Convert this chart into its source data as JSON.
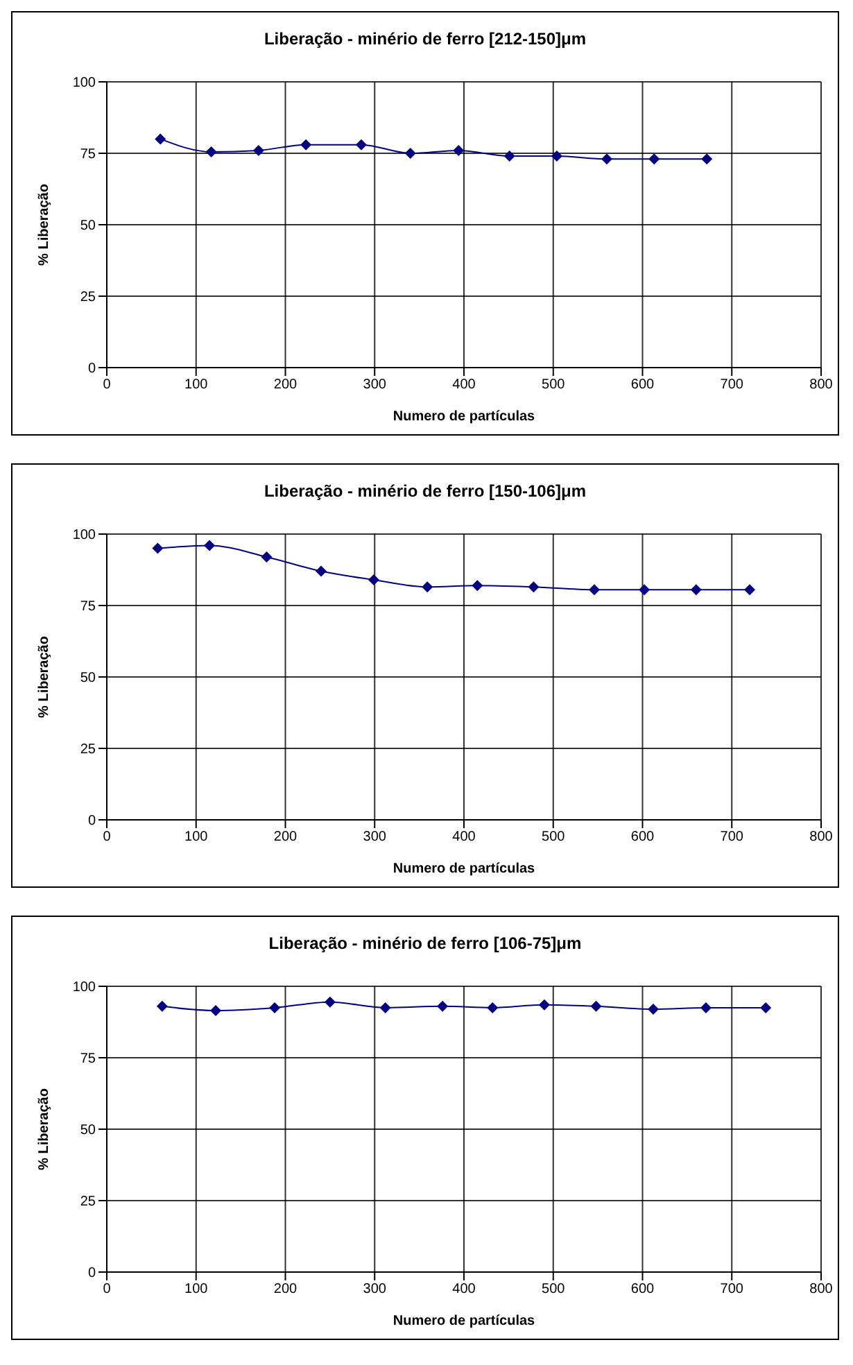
{
  "chart_data": [
    {
      "type": "line",
      "title": "Liberação - minério de ferro [212-150]μm",
      "xlabel": "Numero de partículas",
      "ylabel": "% Liberação",
      "x": [
        60,
        117,
        170,
        223,
        285,
        340,
        394,
        451,
        504,
        560,
        613,
        672
      ],
      "series": [
        {
          "color": "#000080",
          "values": [
            80,
            75.5,
            76,
            78,
            78,
            75,
            76,
            74,
            74,
            73,
            73,
            73
          ]
        }
      ],
      "xlim": [
        0,
        800
      ],
      "xticks": [
        0,
        100,
        200,
        300,
        400,
        500,
        600,
        700,
        800
      ],
      "ylim": [
        0,
        100
      ],
      "yticks": [
        0,
        25,
        50,
        75,
        100
      ],
      "grid": true,
      "marker": "diamond",
      "line_style": "solid"
    },
    {
      "type": "line",
      "title": "Liberação - minério de ferro [150-106]μm",
      "xlabel": "Numero de partículas",
      "ylabel": "% Liberação",
      "x": [
        57,
        115,
        179,
        240,
        299,
        359,
        415,
        478,
        546,
        602,
        660,
        720
      ],
      "series": [
        {
          "color": "#000080",
          "values": [
            95,
            96,
            92,
            87,
            84,
            81.5,
            82,
            81.5,
            80.5,
            80.5,
            80.5,
            80.5
          ]
        }
      ],
      "xlim": [
        0,
        800
      ],
      "xticks": [
        0,
        100,
        200,
        300,
        400,
        500,
        600,
        700,
        800
      ],
      "ylim": [
        0,
        100
      ],
      "yticks": [
        0,
        25,
        50,
        75,
        100
      ],
      "grid": true,
      "marker": "diamond",
      "line_style": "solid"
    },
    {
      "type": "line",
      "title": "Liberação - minério de ferro [106-75]μm",
      "xlabel": "Numero de partículas",
      "ylabel": "% Liberação",
      "x": [
        62,
        122,
        188,
        250,
        312,
        376,
        432,
        490,
        548,
        612,
        671,
        738
      ],
      "series": [
        {
          "color": "#000080",
          "values": [
            93,
            91.5,
            92.5,
            94.5,
            92.5,
            93,
            92.5,
            93.5,
            93,
            92,
            92.5,
            92.5
          ]
        }
      ],
      "xlim": [
        0,
        800
      ],
      "xticks": [
        0,
        100,
        200,
        300,
        400,
        500,
        600,
        700,
        800
      ],
      "ylim": [
        0,
        100
      ],
      "yticks": [
        0,
        25,
        50,
        75,
        100
      ],
      "grid": true,
      "marker": "diamond",
      "line_style": "solid"
    }
  ]
}
